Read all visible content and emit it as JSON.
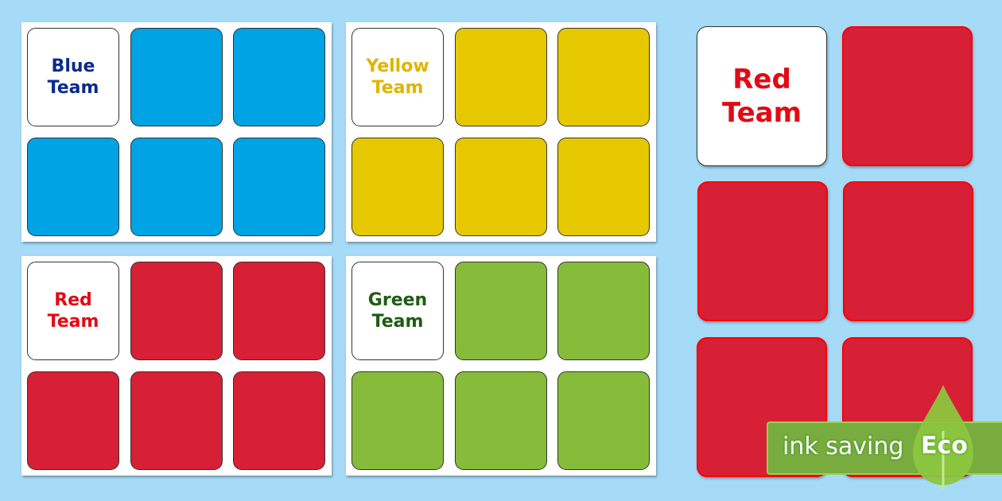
{
  "colors": {
    "blue": "#00a3e4",
    "yellow": "#e6c800",
    "red": "#d71f35",
    "green": "#86bc3a",
    "background": "#a6dbf8"
  },
  "sheets": [
    {
      "id": "blue",
      "title_line1": "Blue",
      "title_line2": "Team",
      "text_color": "#0a2a8e",
      "card_color": "#00a3e4"
    },
    {
      "id": "yellow",
      "title_line1": "Yellow",
      "title_line2": "Team",
      "text_color": "#e0b400",
      "card_color": "#e6c800"
    },
    {
      "id": "red",
      "title_line1": "Red",
      "title_line2": "Team",
      "text_color": "#e20a14",
      "card_color": "#d71f35"
    },
    {
      "id": "green",
      "title_line1": "Green",
      "title_line2": "Team",
      "text_color": "#1f5c12",
      "card_color": "#86bc3a"
    }
  ],
  "preview": {
    "title_line1": "Red",
    "title_line2": "Team",
    "text_color": "#e20a14",
    "card_color": "#d71f35"
  },
  "badge": {
    "text": "ink saving",
    "word": "Eco",
    "icon": "leaf-icon"
  }
}
